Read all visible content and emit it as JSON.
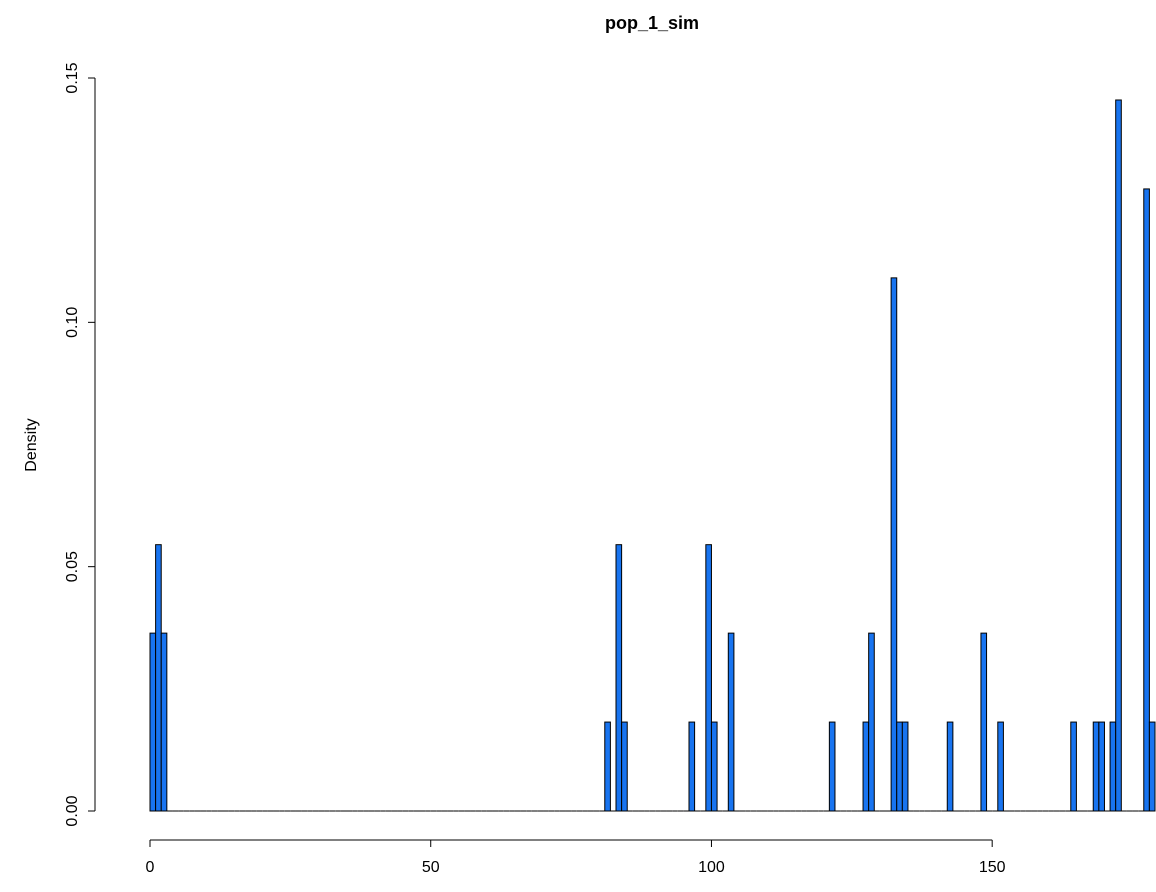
{
  "chart_data": {
    "type": "histogram",
    "title": "pop_1_sim",
    "y_label": "Density",
    "color": "#1874f0",
    "bins": [
      0,
      1,
      2,
      3,
      4,
      5,
      6,
      7,
      8,
      9,
      10,
      11,
      12,
      13,
      14,
      15,
      16,
      17,
      18,
      19,
      20,
      21,
      22,
      23,
      24,
      25,
      26,
      27,
      28,
      29,
      30,
      31,
      32,
      33,
      34,
      35,
      36,
      37,
      38,
      39,
      40,
      41,
      42,
      43,
      44,
      45,
      46,
      47,
      48,
      49,
      50,
      51,
      52,
      53,
      54,
      55,
      56,
      57,
      58,
      59,
      60,
      61,
      62,
      63,
      64,
      65,
      66,
      67,
      68,
      69,
      70,
      71,
      72,
      73,
      74,
      75,
      76,
      77,
      78,
      79,
      80,
      81,
      82,
      83,
      84,
      85,
      86,
      87,
      88,
      89,
      90,
      91,
      92,
      93,
      94,
      95,
      96,
      97,
      98,
      99,
      100,
      101,
      102,
      103,
      104,
      105,
      106,
      107,
      108,
      109,
      110,
      111,
      112,
      113,
      114,
      115,
      116,
      117,
      118,
      119,
      120,
      121,
      122,
      123,
      124,
      125,
      126,
      127,
      128,
      129,
      130,
      131,
      132,
      133,
      134,
      135,
      136,
      137,
      138,
      139,
      140,
      141,
      142,
      143,
      144,
      145,
      146,
      147,
      148,
      149,
      150,
      151,
      152,
      153,
      154,
      155,
      156,
      157,
      158,
      159,
      160,
      161,
      162,
      163,
      164,
      165,
      166,
      167,
      168,
      169,
      170,
      171,
      172,
      173,
      174,
      175,
      176,
      177,
      178,
      179
    ],
    "values": [
      0.0364,
      0.0545,
      0.0364,
      0,
      0,
      0,
      0,
      0,
      0,
      0,
      0,
      0,
      0,
      0,
      0,
      0,
      0,
      0,
      0,
      0,
      0,
      0,
      0,
      0,
      0,
      0,
      0,
      0,
      0,
      0,
      0,
      0,
      0,
      0,
      0,
      0,
      0,
      0,
      0,
      0,
      0,
      0,
      0,
      0,
      0,
      0,
      0,
      0,
      0,
      0,
      0,
      0,
      0,
      0,
      0,
      0,
      0,
      0,
      0,
      0,
      0,
      0,
      0,
      0,
      0,
      0,
      0,
      0,
      0,
      0,
      0,
      0,
      0,
      0,
      0,
      0,
      0,
      0,
      0,
      0,
      0,
      0.0182,
      0,
      0.0545,
      0.0182,
      0,
      0,
      0,
      0,
      0,
      0,
      0,
      0,
      0,
      0,
      0,
      0.0182,
      0,
      0,
      0.0545,
      0.0182,
      0,
      0,
      0.0364,
      0,
      0,
      0,
      0,
      0,
      0,
      0,
      0,
      0,
      0,
      0,
      0,
      0,
      0,
      0,
      0,
      0,
      0.0182,
      0,
      0,
      0,
      0,
      0,
      0.0182,
      0.0364,
      0,
      0,
      0,
      0.1091,
      0.0182,
      0.0182,
      0,
      0,
      0,
      0,
      0,
      0,
      0,
      0.0182,
      0,
      0,
      0,
      0,
      0,
      0.0364,
      0,
      0,
      0.0182,
      0,
      0,
      0,
      0,
      0,
      0,
      0,
      0,
      0,
      0,
      0,
      0,
      0.0182,
      0,
      0,
      0,
      0.0182,
      0.0182,
      0,
      0.0182,
      0.1455,
      0,
      0,
      0,
      0,
      0.1273,
      0.0182
    ],
    "xlim": [
      0,
      179
    ],
    "xticks": [
      0,
      50,
      100,
      150
    ],
    "ylim": [
      0,
      0.15
    ],
    "yticks": [
      {
        "value": 0,
        "label": "0.00"
      },
      {
        "value": 0.05,
        "label": "0.05"
      },
      {
        "value": 0.1,
        "label": "0.10"
      },
      {
        "value": 0.15,
        "label": "0.15"
      }
    ]
  }
}
